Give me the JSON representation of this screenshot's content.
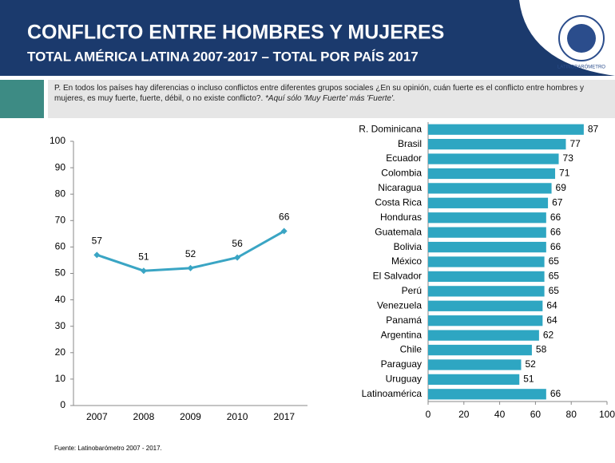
{
  "header": {
    "title": "CONFLICTO ENTRE HOMBRES Y MUJERES",
    "subtitle": "TOTAL AMÉRICA LATINA 2007-2017 – TOTAL POR PAÍS 2017",
    "logo_text": "LATINOBARÓMETRO"
  },
  "question": {
    "text": "P. En todos los países hay diferencias o incluso conflictos entre diferentes grupos sociales ¿En su opinión, cuán fuerte es el conflicto entre  hombres y mujeres, es muy fuerte, fuerte, débil, o no existe conflicto?.",
    "note": "*Aquí sólo 'Muy Fuerte' más 'Fuerte'."
  },
  "source": "Fuente: Latinobarómetro 2007 - 2017.",
  "chart_data": [
    {
      "type": "line",
      "categories": [
        "2007",
        "2008",
        "2009",
        "2010",
        "2017"
      ],
      "values": [
        57,
        51,
        52,
        56,
        66
      ],
      "color": "#3aa5c4",
      "ylim": [
        0,
        100
      ],
      "yticks": [
        0,
        10,
        20,
        30,
        40,
        50,
        60,
        70,
        80,
        90,
        100
      ]
    },
    {
      "type": "bar",
      "orientation": "horizontal",
      "categories": [
        "R. Dominicana",
        "Brasil",
        "Ecuador",
        "Colombia",
        "Nicaragua",
        "Costa Rica",
        "Honduras",
        "Guatemala",
        "Bolivia",
        "México",
        "El Salvador",
        "Perú",
        "Venezuela",
        "Panamá",
        "Argentina",
        "Chile",
        "Paraguay",
        "Uruguay",
        "Latinoamérica"
      ],
      "values": [
        87,
        77,
        73,
        71,
        69,
        67,
        66,
        66,
        66,
        65,
        65,
        65,
        64,
        64,
        62,
        58,
        52,
        51,
        66
      ],
      "color": "#2ea6c2",
      "xlim": [
        0,
        100
      ],
      "xticks": [
        0,
        20,
        40,
        60,
        80,
        100
      ]
    }
  ]
}
